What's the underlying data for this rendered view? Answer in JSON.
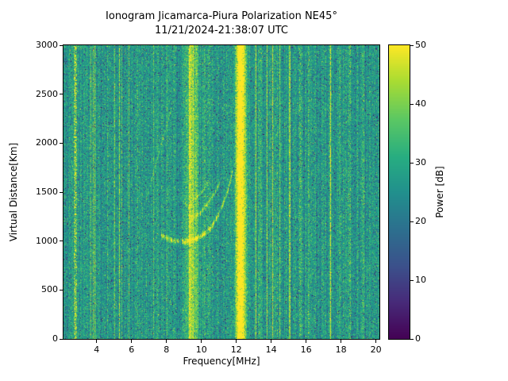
{
  "chart_data": {
    "type": "heatmap",
    "title_line1": "Ionogram Jicamarca-Piura Polarization NE45°",
    "title_line2": "11/21/2024-21:38:07 UTC",
    "station": "Jicamarca-Piura",
    "polarization": "NE45°",
    "timestamp_utc": "11/21/2024-21:38:07",
    "xlabel": "Frequency[MHz]",
    "ylabel": "Virtual Distance[Km]",
    "xlim": [
      2.1,
      20.2
    ],
    "ylim": [
      0,
      3000
    ],
    "xticks": [
      4,
      6,
      8,
      10,
      12,
      14,
      16,
      18,
      20
    ],
    "yticks": [
      0,
      500,
      1000,
      1500,
      2000,
      2500,
      3000
    ],
    "colormap": "viridis",
    "colorbar": {
      "label": "Power [dB]",
      "min": 0,
      "max": 50,
      "ticks": [
        0,
        10,
        20,
        30,
        40,
        50
      ]
    },
    "noise_floor_db": {
      "mean": 27,
      "std": 6
    },
    "rfi_bands": [
      {
        "freq": 2.78,
        "sigma": 0.07,
        "boost": 22,
        "patchy": true
      },
      {
        "freq": 4.65,
        "sigma": 0.05,
        "boost": 7,
        "patchy": true
      },
      {
        "freq": 6.35,
        "sigma": 0.05,
        "boost": 6,
        "patchy": true
      },
      {
        "freq": 9.5,
        "sigma": 0.22,
        "boost": 17,
        "patchy": false
      },
      {
        "freq": 10.35,
        "sigma": 0.18,
        "boost": 7,
        "patchy": true
      },
      {
        "freq": 12.25,
        "sigma": 0.2,
        "boost": 34,
        "patchy": false
      },
      {
        "freq": 13.35,
        "sigma": 0.06,
        "boost": 8,
        "patchy": true
      },
      {
        "freq": 14.35,
        "sigma": 0.05,
        "boost": 9,
        "patchy": true
      },
      {
        "freq": 15.65,
        "sigma": 0.06,
        "boost": 12,
        "patchy": true
      },
      {
        "freq": 16.15,
        "sigma": 0.05,
        "boost": 8,
        "patchy": true
      },
      {
        "freq": 17.4,
        "sigma": 0.05,
        "boost": 9,
        "patchy": true
      },
      {
        "freq": 18.5,
        "sigma": 0.06,
        "boost": 10,
        "patchy": true
      },
      {
        "freq": 19.3,
        "sigma": 0.05,
        "boost": 8,
        "patchy": true
      }
    ],
    "echo_traces": [
      {
        "name": "f-layer-main-trace",
        "boost": 15,
        "sigma": 2.2,
        "points": [
          [
            7.7,
            1060
          ],
          [
            8.3,
            1010
          ],
          [
            8.9,
            995
          ],
          [
            9.5,
            1015
          ],
          [
            10.0,
            1060
          ],
          [
            10.45,
            1130
          ],
          [
            10.85,
            1230
          ],
          [
            11.2,
            1370
          ],
          [
            11.5,
            1530
          ],
          [
            11.75,
            1700
          ]
        ]
      },
      {
        "name": "f-layer-second-branch",
        "boost": 10,
        "sigma": 2.0,
        "points": [
          [
            9.4,
            1240
          ],
          [
            9.9,
            1290
          ],
          [
            10.3,
            1370
          ],
          [
            10.7,
            1480
          ],
          [
            11.0,
            1590
          ]
        ]
      },
      {
        "name": "f-layer-third-branch",
        "boost": 8,
        "sigma": 1.8,
        "points": [
          [
            9.6,
            1430
          ],
          [
            10.0,
            1510
          ],
          [
            10.35,
            1600
          ]
        ]
      },
      {
        "name": "oblique-streak",
        "boost": 7,
        "sigma": 2.0,
        "points": [
          [
            6.85,
            1450
          ],
          [
            7.35,
            1760
          ],
          [
            7.8,
            2060
          ],
          [
            8.25,
            2340
          ]
        ]
      }
    ]
  }
}
